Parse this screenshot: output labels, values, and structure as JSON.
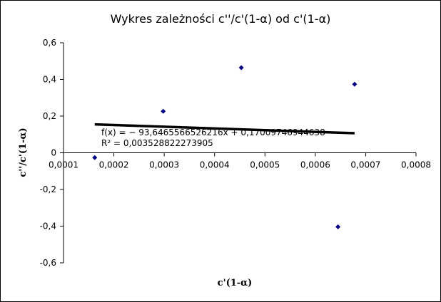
{
  "chart_data": {
    "type": "scatter",
    "title": "Wykres zależności c''/c'(1-α) od c'(1-α)",
    "xlabel": "c'(1-α)",
    "ylabel": "c''/c'(1-α)",
    "xlim": [
      0.0001,
      0.0008
    ],
    "ylim": [
      -0.6,
      0.6
    ],
    "x_ticks": [
      "0,0001",
      "0,0002",
      "0,0003",
      "0,0004",
      "0,0005",
      "0,0006",
      "0,0007",
      "0,0008"
    ],
    "y_ticks": [
      "0,6",
      "0,4",
      "0,2",
      "0",
      "-0,2",
      "-0,4",
      "-0,6"
    ],
    "grid": false,
    "series": [
      {
        "points": [
          {
            "x": 0.000162,
            "y": -0.026
          },
          {
            "x": 0.000298,
            "y": 0.226
          },
          {
            "x": 0.000453,
            "y": 0.464
          },
          {
            "x": 0.000645,
            "y": -0.404
          },
          {
            "x": 0.000678,
            "y": 0.374
          }
        ],
        "marker": "diamond",
        "color": "#000080"
      }
    ],
    "trendline": {
      "type": "linear",
      "slope": -93.6465566526216,
      "intercept": 0.17009746944638,
      "x_range": [
        0.000162,
        0.000678
      ],
      "color": "#000000"
    },
    "annotations": {
      "equation": "f(x) = − 93,6465566526216x + 0,17009746944638",
      "r_squared": "R² = 0,003528822273905"
    }
  }
}
